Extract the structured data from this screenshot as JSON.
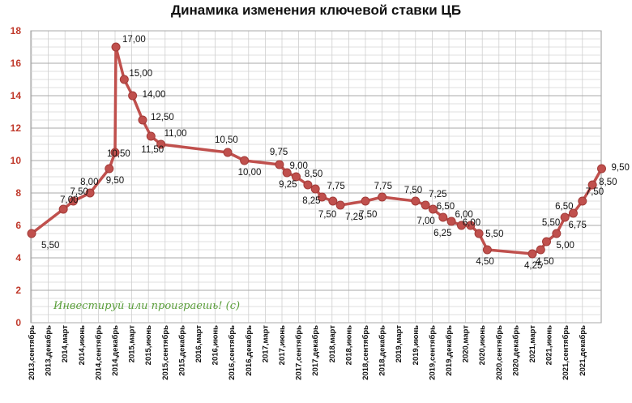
{
  "chart_data": {
    "type": "line",
    "title": "Динамика изменения ключевой ставки ЦБ",
    "xlabel": "",
    "ylabel": "",
    "ylim": [
      0,
      18
    ],
    "yticks": [
      0,
      2,
      4,
      6,
      8,
      10,
      12,
      14,
      16,
      18
    ],
    "grid": true,
    "legend": "none",
    "line_color": "#c0504d",
    "axis_label_color": "#c0392b",
    "x_tick_labels": [
      "2013,сентябрь",
      "2013,декабрь",
      "2014,март",
      "2014,июнь",
      "2014,сентябрь",
      "2014,декабрь",
      "2015,март",
      "2015,июнь",
      "2015,сентябрь",
      "2015,декабрь",
      "2016,март",
      "2016,июнь",
      "2016,сентябрь",
      "2016,декабрь",
      "2017,март",
      "2017,июнь",
      "2017,сентябрь",
      "2017,декабрь",
      "2018,март",
      "2018,июнь",
      "2018,сентябрь",
      "2018,декабрь",
      "2019,март",
      "2019,июнь",
      "2019,сентябрь",
      "2019,декабрь",
      "2020,март",
      "2020,июнь",
      "2020,сентябрь",
      "2020,декабрь",
      "2021,март",
      "2021,июнь",
      "2021,сентябрь",
      "2021,декабрь"
    ],
    "points": [
      {
        "x": 0.0,
        "y": 5.5,
        "label": "5,50"
      },
      {
        "x": 1.9,
        "y": 7.0,
        "label": "7,00"
      },
      {
        "x": 2.5,
        "y": 7.5,
        "label": "7,50"
      },
      {
        "x": 3.5,
        "y": 8.0,
        "label": "8,00"
      },
      {
        "x": 4.65,
        "y": 9.5,
        "label": "9,50"
      },
      {
        "x": 5.0,
        "y": 10.5,
        "label": "10,50"
      },
      {
        "x": 5.05,
        "y": 17.0,
        "label": "17,00"
      },
      {
        "x": 5.55,
        "y": 15.0,
        "label": "15,00"
      },
      {
        "x": 6.05,
        "y": 14.0,
        "label": "14,00"
      },
      {
        "x": 6.65,
        "y": 12.5,
        "label": "12,50"
      },
      {
        "x": 7.15,
        "y": 11.5,
        "label": "11,50"
      },
      {
        "x": 7.75,
        "y": 11.0,
        "label": "11,00"
      },
      {
        "x": 11.75,
        "y": 10.5,
        "label": "10,50"
      },
      {
        "x": 12.75,
        "y": 10.0,
        "label": "10,00"
      },
      {
        "x": 14.85,
        "y": 9.75,
        "label": "9,75"
      },
      {
        "x": 15.3,
        "y": 9.25,
        "label": "9,25"
      },
      {
        "x": 15.85,
        "y": 9.0,
        "label": "9,00"
      },
      {
        "x": 16.55,
        "y": 8.5,
        "label": "8,50"
      },
      {
        "x": 17.0,
        "y": 8.25,
        "label": "8,25"
      },
      {
        "x": 17.4,
        "y": 7.75,
        "label": "7,75"
      },
      {
        "x": 18.05,
        "y": 7.5,
        "label": "7,50"
      },
      {
        "x": 18.5,
        "y": 7.25,
        "label": "7,25"
      },
      {
        "x": 20.0,
        "y": 7.5,
        "label": "7,50"
      },
      {
        "x": 21.0,
        "y": 7.75,
        "label": "7,75"
      },
      {
        "x": 23.0,
        "y": 7.5,
        "label": "7,50"
      },
      {
        "x": 23.6,
        "y": 7.25,
        "label": "7,25"
      },
      {
        "x": 24.05,
        "y": 7.0,
        "label": "7,00"
      },
      {
        "x": 24.65,
        "y": 6.5,
        "label": "6,50"
      },
      {
        "x": 25.15,
        "y": 6.25,
        "label": "6,25"
      },
      {
        "x": 25.75,
        "y": 6.0,
        "label": "6,00"
      },
      {
        "x": 26.3,
        "y": 6.0,
        "label": "6,00"
      },
      {
        "x": 26.8,
        "y": 5.5,
        "label": "5,50"
      },
      {
        "x": 27.3,
        "y": 4.5,
        "label": "4,50"
      },
      {
        "x": 30.0,
        "y": 4.25,
        "label": "4,25"
      },
      {
        "x": 30.5,
        "y": 4.5,
        "label": "4,50"
      },
      {
        "x": 30.85,
        "y": 5.0,
        "label": "5,00"
      },
      {
        "x": 31.45,
        "y": 5.5,
        "label": "5,50"
      },
      {
        "x": 31.95,
        "y": 6.5,
        "label": "6,50"
      },
      {
        "x": 32.45,
        "y": 6.75,
        "label": "6,75"
      },
      {
        "x": 33.0,
        "y": 7.5,
        "label": "7,50"
      },
      {
        "x": 33.6,
        "y": 8.5,
        "label": "8,50"
      },
      {
        "x": 34.15,
        "y": 9.5,
        "label": "9,50"
      }
    ],
    "annotations": [
      "Инвестируй или проиграешь! (с)"
    ]
  }
}
